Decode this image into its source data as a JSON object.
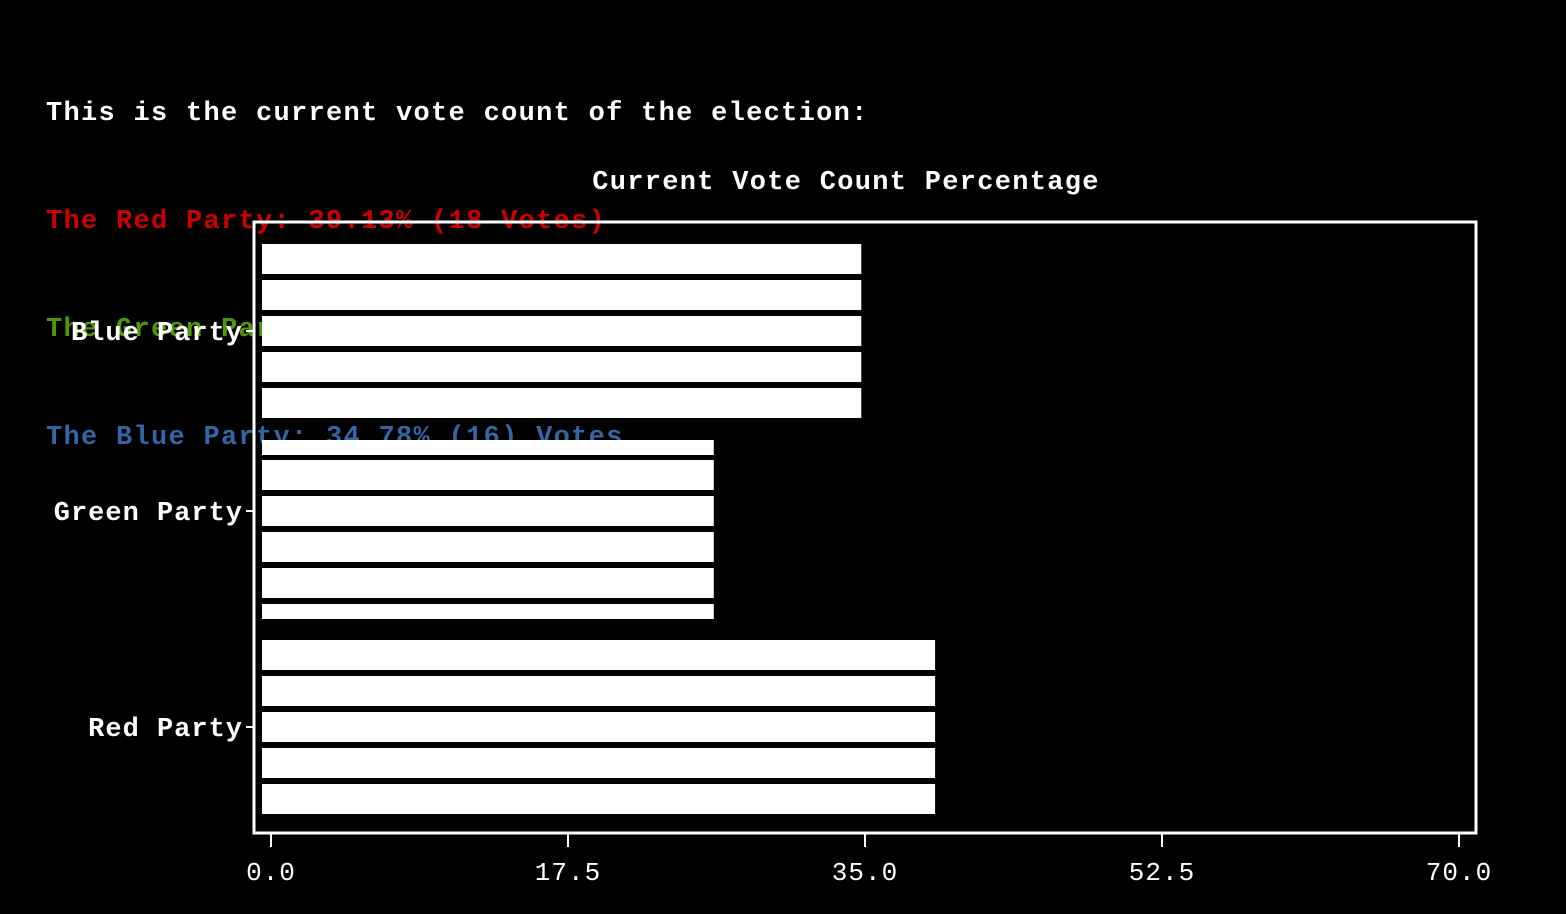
{
  "terminal": {
    "header_line": "This is the current vote count of the election:",
    "red_line": "The Red Party: 39.13% (18 Votes)",
    "green_line": "The Green Party: 26.09% (12 Votes)",
    "blue_line": "The Blue Party: 34.78% (16) Votes",
    "colors": {
      "header": "#ffffff",
      "red": "#cc0000",
      "green": "#4e9a06",
      "blue": "#3465a4"
    }
  },
  "chart_data": {
    "type": "bar",
    "orientation": "horizontal",
    "title": "Current Vote Count Percentage",
    "categories": [
      "Red Party",
      "Green Party",
      "Blue Party"
    ],
    "values": [
      39.13,
      26.09,
      34.78
    ],
    "xlim": [
      0,
      70
    ],
    "xticks": [
      "0.0",
      "17.5",
      "35.0",
      "52.5",
      "70.0"
    ],
    "xtick_values": [
      0,
      17.5,
      35.0,
      52.5,
      70.0
    ],
    "bar_color": "#ffffff",
    "background": "#000000",
    "grid": false
  }
}
